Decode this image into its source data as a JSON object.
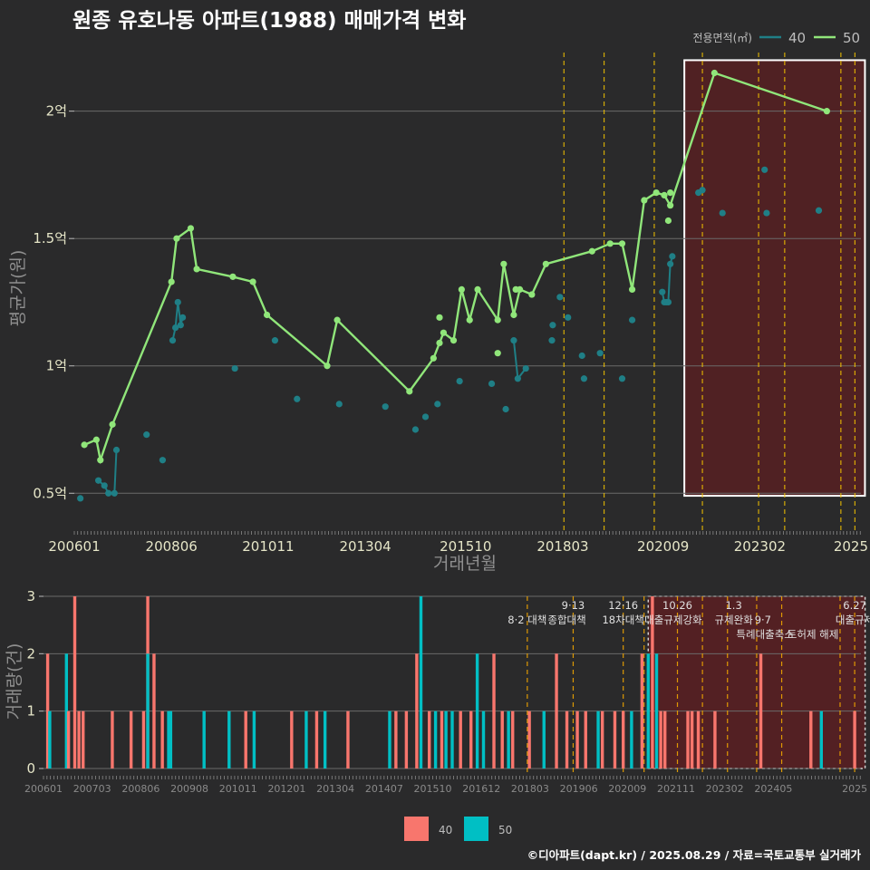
{
  "chart_data": {
    "title": "원종 유호나동 아파트(1988) 매매가격 변화",
    "legend_title": "전용면적(㎡)",
    "colors": {
      "s40": "#1f7f86",
      "s50": "#90e67a",
      "bar40": "#f8766d",
      "bar50": "#00bfc4",
      "highlight": "#5a1f22",
      "bg": "#2a2a2b",
      "policy_line": "#f2c200"
    },
    "price_chart": {
      "type": "line",
      "ylabel": "평균가(원)",
      "xlabel": "거래년월",
      "ylim": [
        0.38,
        2.23
      ],
      "yticks": [
        {
          "v": 0.5,
          "label": "0.5억"
        },
        {
          "v": 1.0,
          "label": "1억"
        },
        {
          "v": 1.5,
          "label": "1.5억"
        },
        {
          "v": 2.0,
          "label": "2억"
        }
      ],
      "xticks": [
        "200601",
        "200806",
        "201011",
        "201304",
        "201510",
        "201803",
        "202009",
        "202302",
        "2025"
      ],
      "series": [
        {
          "name": "40",
          "color": "#1f7f86",
          "points": [
            [
              2006.15,
              0.48
            ],
            [
              2006.6,
              0.55
            ],
            [
              2006.75,
              0.53
            ],
            [
              2006.85,
              0.5
            ],
            [
              2007.0,
              0.5
            ],
            [
              2007.05,
              0.67
            ],
            [
              2007.8,
              0.73
            ],
            [
              2008.2,
              0.63
            ],
            [
              2008.45,
              1.1
            ],
            [
              2008.52,
              1.15
            ],
            [
              2008.58,
              1.25
            ],
            [
              2008.65,
              1.16
            ],
            [
              2008.7,
              1.19
            ],
            [
              2010.0,
              0.99
            ],
            [
              2011.0,
              1.1
            ],
            [
              2011.55,
              0.87
            ],
            [
              2012.6,
              0.85
            ],
            [
              2013.75,
              0.84
            ],
            [
              2014.5,
              0.75
            ],
            [
              2014.75,
              0.8
            ],
            [
              2015.05,
              0.85
            ],
            [
              2015.6,
              0.94
            ],
            [
              2016.4,
              0.93
            ],
            [
              2016.75,
              0.83
            ],
            [
              2016.95,
              1.1
            ],
            [
              2017.05,
              0.95
            ],
            [
              2017.25,
              0.99
            ],
            [
              2017.92,
              1.16
            ],
            [
              2017.9,
              1.1
            ],
            [
              2018.1,
              1.27
            ],
            [
              2018.3,
              1.19
            ],
            [
              2018.65,
              1.04
            ],
            [
              2018.7,
              0.95
            ],
            [
              2019.1,
              1.05
            ],
            [
              2019.65,
              0.95
            ],
            [
              2019.9,
              1.18
            ],
            [
              2020.65,
              1.29
            ],
            [
              2020.7,
              1.25
            ],
            [
              2020.75,
              1.25
            ],
            [
              2020.8,
              1.25
            ],
            [
              2020.85,
              1.4
            ],
            [
              2020.9,
              1.43
            ],
            [
              2021.55,
              1.68
            ],
            [
              2021.65,
              1.69
            ],
            [
              2022.15,
              1.6
            ],
            [
              2023.2,
              1.77
            ],
            [
              2023.25,
              1.6
            ],
            [
              2024.55,
              1.61
            ]
          ],
          "path": [
            [
              2006.6,
              0.55
            ],
            [
              2006.75,
              0.53
            ],
            [
              2006.85,
              0.5
            ],
            [
              2007.0,
              0.5
            ],
            [
              2007.05,
              0.67
            ],
            null,
            [
              2008.45,
              1.1
            ],
            [
              2008.52,
              1.15
            ],
            [
              2008.58,
              1.25
            ],
            [
              2008.65,
              1.16
            ],
            [
              2008.7,
              1.19
            ],
            null,
            [
              2016.95,
              1.1
            ],
            [
              2017.05,
              0.95
            ],
            [
              2017.25,
              0.99
            ],
            null,
            [
              2020.65,
              1.29
            ],
            [
              2020.7,
              1.25
            ],
            [
              2020.75,
              1.25
            ],
            [
              2020.8,
              1.25
            ],
            [
              2020.85,
              1.4
            ],
            [
              2020.9,
              1.43
            ]
          ]
        },
        {
          "name": "50",
          "color": "#90e67a",
          "points": [
            [
              2006.25,
              0.69
            ],
            [
              2006.55,
              0.71
            ],
            [
              2006.65,
              0.63
            ],
            [
              2006.95,
              0.77
            ],
            [
              2008.42,
              1.33
            ],
            [
              2008.55,
              1.5
            ],
            [
              2008.9,
              1.54
            ],
            [
              2009.05,
              1.38
            ],
            [
              2009.95,
              1.35
            ],
            [
              2010.45,
              1.33
            ],
            [
              2010.8,
              1.2
            ],
            [
              2012.3,
              1.0
            ],
            [
              2012.55,
              1.18
            ],
            [
              2014.35,
              0.9
            ],
            [
              2014.95,
              1.03
            ],
            [
              2015.2,
              1.13
            ],
            [
              2015.45,
              1.1
            ],
            [
              2015.65,
              1.3
            ],
            [
              2015.85,
              1.18
            ],
            [
              2016.05,
              1.3
            ],
            [
              2016.55,
              1.18
            ],
            [
              2016.7,
              1.4
            ],
            [
              2016.95,
              1.2
            ],
            [
              2017.1,
              1.3
            ],
            [
              2017.4,
              1.28
            ],
            [
              2017.75,
              1.4
            ],
            [
              2018.9,
              1.45
            ],
            [
              2019.35,
              1.48
            ],
            [
              2019.65,
              1.48
            ],
            [
              2019.9,
              1.3
            ],
            [
              2020.2,
              1.65
            ],
            [
              2020.5,
              1.68
            ],
            [
              2020.7,
              1.67
            ],
            [
              2020.85,
              1.63
            ],
            [
              2021.95,
              2.15
            ],
            [
              2024.75,
              2.0
            ]
          ],
          "extra_points": [
            [
              2015.1,
              1.19
            ],
            [
              2015.1,
              1.09
            ],
            [
              2016.55,
              1.05
            ],
            [
              2017.0,
              1.3
            ],
            [
              2020.85,
              1.68
            ],
            [
              2020.8,
              1.57
            ]
          ]
        }
      ],
      "policy_lines": [
        2018.2,
        2019.2,
        2020.45,
        2021.65,
        2023.05,
        2023.7,
        2025.1,
        2025.45
      ],
      "highlight_range": [
        2021.2,
        2025.7
      ]
    },
    "volume_chart": {
      "type": "bar",
      "ylabel": "거래량(건)",
      "ylim": [
        0,
        3
      ],
      "yticks": [
        "0",
        "1",
        "2",
        "3"
      ],
      "xticks": [
        "200601",
        "200703",
        "200806",
        "200908",
        "201011",
        "201201",
        "201304",
        "201407",
        "201510",
        "201612",
        "201803",
        "201906",
        "202009",
        "202111",
        "202302",
        "202405",
        "2025"
      ],
      "legend": [
        "40",
        "50"
      ],
      "bars": [
        {
          "t": 2006.1,
          "s": "40",
          "v": 2
        },
        {
          "t": 2006.15,
          "s": "50",
          "v": 1
        },
        {
          "t": 2006.55,
          "s": "50",
          "v": 2
        },
        {
          "t": 2006.6,
          "s": "40",
          "v": 1
        },
        {
          "t": 2006.75,
          "s": "40",
          "v": 3
        },
        {
          "t": 2006.85,
          "s": "40",
          "v": 1
        },
        {
          "t": 2006.95,
          "s": "40",
          "v": 1
        },
        {
          "t": 2007.65,
          "s": "40",
          "v": 1
        },
        {
          "t": 2008.1,
          "s": "40",
          "v": 1
        },
        {
          "t": 2008.4,
          "s": "40",
          "v": 1
        },
        {
          "t": 2008.5,
          "s": "40",
          "v": 3
        },
        {
          "t": 2008.5,
          "s": "50",
          "v": 2
        },
        {
          "t": 2008.65,
          "s": "40",
          "v": 2
        },
        {
          "t": 2008.85,
          "s": "40",
          "v": 1
        },
        {
          "t": 2009.0,
          "s": "50",
          "v": 1
        },
        {
          "t": 2009.05,
          "s": "50",
          "v": 1
        },
        {
          "t": 2009.85,
          "s": "50",
          "v": 1
        },
        {
          "t": 2010.45,
          "s": "50",
          "v": 1
        },
        {
          "t": 2010.85,
          "s": "40",
          "v": 1
        },
        {
          "t": 2011.05,
          "s": "50",
          "v": 1
        },
        {
          "t": 2011.95,
          "s": "40",
          "v": 1
        },
        {
          "t": 2012.3,
          "s": "50",
          "v": 1
        },
        {
          "t": 2012.55,
          "s": "40",
          "v": 1
        },
        {
          "t": 2012.75,
          "s": "50",
          "v": 1
        },
        {
          "t": 2013.3,
          "s": "40",
          "v": 1
        },
        {
          "t": 2014.3,
          "s": "50",
          "v": 1
        },
        {
          "t": 2014.45,
          "s": "40",
          "v": 1
        },
        {
          "t": 2014.7,
          "s": "40",
          "v": 1
        },
        {
          "t": 2014.95,
          "s": "40",
          "v": 2
        },
        {
          "t": 2015.05,
          "s": "50",
          "v": 3
        },
        {
          "t": 2015.25,
          "s": "40",
          "v": 1
        },
        {
          "t": 2015.4,
          "s": "50",
          "v": 1
        },
        {
          "t": 2015.55,
          "s": "40",
          "v": 1
        },
        {
          "t": 2015.65,
          "s": "50",
          "v": 1
        },
        {
          "t": 2015.8,
          "s": "50",
          "v": 1
        },
        {
          "t": 2016.0,
          "s": "40",
          "v": 1
        },
        {
          "t": 2016.25,
          "s": "40",
          "v": 1
        },
        {
          "t": 2016.4,
          "s": "50",
          "v": 2
        },
        {
          "t": 2016.55,
          "s": "50",
          "v": 1
        },
        {
          "t": 2016.8,
          "s": "40",
          "v": 2
        },
        {
          "t": 2017.0,
          "s": "40",
          "v": 1
        },
        {
          "t": 2017.15,
          "s": "50",
          "v": 1
        },
        {
          "t": 2017.25,
          "s": "40",
          "v": 1
        },
        {
          "t": 2017.65,
          "s": "40",
          "v": 1
        },
        {
          "t": 2018.0,
          "s": "50",
          "v": 1
        },
        {
          "t": 2018.3,
          "s": "40",
          "v": 2
        },
        {
          "t": 2018.55,
          "s": "40",
          "v": 1
        },
        {
          "t": 2018.8,
          "s": "40",
          "v": 1
        },
        {
          "t": 2019.0,
          "s": "40",
          "v": 1
        },
        {
          "t": 2019.3,
          "s": "50",
          "v": 1
        },
        {
          "t": 2019.4,
          "s": "40",
          "v": 1
        },
        {
          "t": 2019.7,
          "s": "40",
          "v": 1
        },
        {
          "t": 2019.9,
          "s": "40",
          "v": 1
        },
        {
          "t": 2020.1,
          "s": "50",
          "v": 1
        },
        {
          "t": 2020.35,
          "s": "40",
          "v": 2
        },
        {
          "t": 2020.5,
          "s": "50",
          "v": 2
        },
        {
          "t": 2020.6,
          "s": "40",
          "v": 3
        },
        {
          "t": 2020.7,
          "s": "50",
          "v": 2
        },
        {
          "t": 2020.8,
          "s": "40",
          "v": 1
        },
        {
          "t": 2020.9,
          "s": "40",
          "v": 1
        },
        {
          "t": 2021.45,
          "s": "40",
          "v": 1
        },
        {
          "t": 2021.55,
          "s": "40",
          "v": 1
        },
        {
          "t": 2021.7,
          "s": "40",
          "v": 1
        },
        {
          "t": 2022.1,
          "s": "40",
          "v": 1
        },
        {
          "t": 2023.2,
          "s": "40",
          "v": 2
        },
        {
          "t": 2024.4,
          "s": "40",
          "v": 1
        },
        {
          "t": 2024.65,
          "s": "50",
          "v": 1
        },
        {
          "t": 2025.45,
          "s": "40",
          "v": 1
        }
      ],
      "policy_lines": [
        2017.6,
        2018.7,
        2019.9,
        2020.4,
        2021.2,
        2021.8,
        2022.4,
        2023.1,
        2023.7,
        2025.1,
        2025.45
      ],
      "highlight_range": [
        2020.5,
        2025.7
      ],
      "annotations": [
        {
          "t": 2017.6,
          "line": 0,
          "text": "8·2 대책"
        },
        {
          "t": 2018.7,
          "line": 1,
          "text": "9·13"
        },
        {
          "t": 2018.55,
          "line": 0,
          "text": "종합대책"
        },
        {
          "t": 2019.9,
          "line": 1,
          "text": "12·16"
        },
        {
          "t": 2019.9,
          "line": 0,
          "text": "18차대책"
        },
        {
          "t": 2021.2,
          "line": 1,
          "text": "10.26"
        },
        {
          "t": 2021.1,
          "line": 0,
          "text": "대출규제강화"
        },
        {
          "t": 2022.55,
          "line": 1,
          "text": "1.3"
        },
        {
          "t": 2022.55,
          "line": 0,
          "text": "규제완화"
        },
        {
          "t": 2023.25,
          "line": 0,
          "text": "9·7"
        },
        {
          "t": 2023.3,
          "line": -1,
          "text": "특례대출축소"
        },
        {
          "t": 2024.45,
          "line": -1,
          "text": "토허제 해제"
        },
        {
          "t": 2025.45,
          "line": 1,
          "text": "6.27"
        },
        {
          "t": 2025.45,
          "line": 0,
          "text": "대출규제"
        }
      ]
    }
  },
  "credit": "©디아파트(dapt.kr) / 2025.08.29 / 자료=국토교통부 실거래가"
}
